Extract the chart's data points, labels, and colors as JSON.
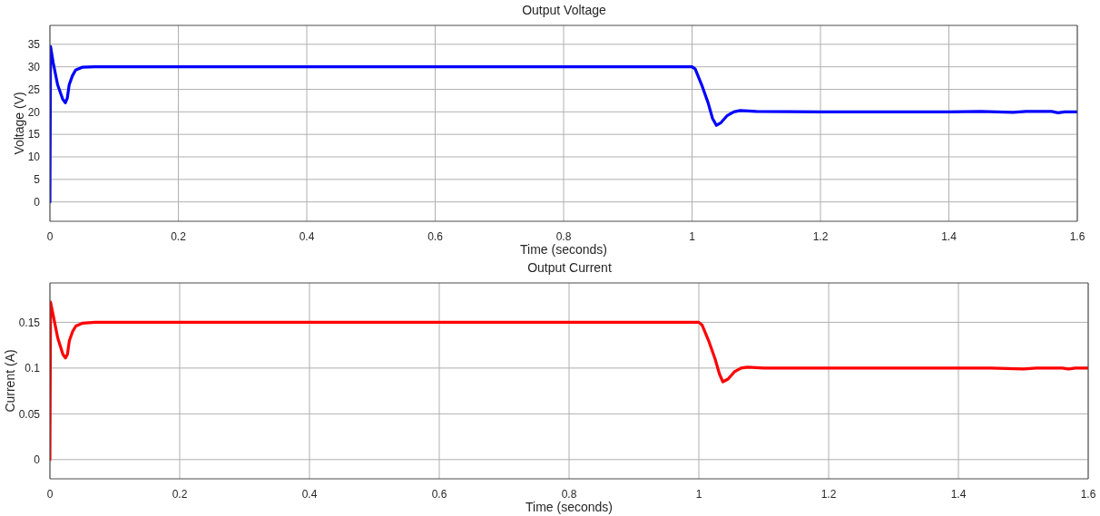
{
  "chart_data": [
    {
      "type": "line",
      "title": "Output Voltage",
      "xlabel": "Time (seconds)",
      "ylabel": "Voltage (V)",
      "x": [
        0,
        0.001,
        0.005,
        0.012,
        0.02,
        0.024,
        0.027,
        0.03,
        0.035,
        0.04,
        0.05,
        0.07,
        0.5,
        0.9,
        1.0,
        1.005,
        1.015,
        1.025,
        1.032,
        1.038,
        1.045,
        1.055,
        1.065,
        1.075,
        1.1,
        1.2,
        1.3,
        1.4,
        1.45,
        1.5,
        1.52,
        1.56,
        1.57,
        1.58,
        1.6
      ],
      "series": [
        {
          "color": "#0000ff",
          "values": [
            0,
            34.5,
            31,
            26,
            22.8,
            22,
            23,
            26,
            28,
            29.3,
            29.9,
            30,
            30,
            30,
            30,
            29.5,
            26,
            22,
            18.5,
            17,
            17.6,
            19.2,
            20,
            20.3,
            20.1,
            20,
            20,
            20,
            20.1,
            19.9,
            20.1,
            20.1,
            19.8,
            20,
            20
          ]
        }
      ],
      "xlim": [
        0,
        1.6
      ],
      "xticks": [
        0,
        0.2,
        0.4,
        0.6,
        0.8,
        1,
        1.2,
        1.4,
        1.6
      ],
      "ylim": [
        -4.3,
        39.2
      ],
      "yticks": [
        0,
        5,
        10,
        15,
        20,
        25,
        30,
        35
      ],
      "grid": true
    },
    {
      "type": "line",
      "title": "Output Current",
      "xlabel": "Time (seconds)",
      "ylabel": "Current (A)",
      "x": [
        0,
        0.001,
        0.005,
        0.012,
        0.02,
        0.024,
        0.027,
        0.03,
        0.035,
        0.04,
        0.05,
        0.07,
        0.5,
        0.9,
        1.0,
        1.005,
        1.015,
        1.025,
        1.032,
        1.037,
        1.045,
        1.055,
        1.065,
        1.075,
        1.1,
        1.2,
        1.3,
        1.4,
        1.45,
        1.5,
        1.52,
        1.56,
        1.57,
        1.58,
        1.6
      ],
      "series": [
        {
          "color": "#ff0000",
          "values": [
            0,
            0.172,
            0.158,
            0.133,
            0.115,
            0.111,
            0.115,
            0.13,
            0.14,
            0.146,
            0.149,
            0.15,
            0.15,
            0.15,
            0.15,
            0.147,
            0.13,
            0.11,
            0.093,
            0.085,
            0.088,
            0.096,
            0.1,
            0.101,
            0.1,
            0.1,
            0.1,
            0.1,
            0.1,
            0.099,
            0.1,
            0.1,
            0.099,
            0.1,
            0.1
          ]
        }
      ],
      "xlim": [
        0,
        1.6
      ],
      "xticks": [
        0,
        0.2,
        0.4,
        0.6,
        0.8,
        1,
        1.2,
        1.4,
        1.6
      ],
      "ylim": [
        -0.021,
        0.193
      ],
      "yticks": [
        0,
        0.05,
        0.1,
        0.15
      ],
      "grid": true
    }
  ]
}
